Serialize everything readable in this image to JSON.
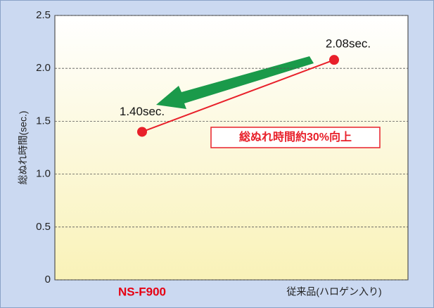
{
  "chart_data": {
    "type": "line",
    "categories": [
      "NS-F900",
      "従来品(ハロゲン入り)"
    ],
    "category_colors": [
      "#e60012",
      "#222222"
    ],
    "series": [
      {
        "name": "総ぬれ時間",
        "color": "#e8202a",
        "values": [
          1.4,
          2.08
        ],
        "value_labels": [
          "1.40sec.",
          "2.08sec."
        ]
      }
    ],
    "ylabel": "総ぬれ時間(sec.)",
    "annotation": "総ぬれ時間約30%向上",
    "ylim": [
      0,
      2.5
    ],
    "yticks": [
      0,
      0.5,
      {
        "value": 1,
        "label": "1.0"
      },
      1.5,
      {
        "value": 2,
        "label": "2.0"
      },
      2.5
    ],
    "grid": true
  }
}
